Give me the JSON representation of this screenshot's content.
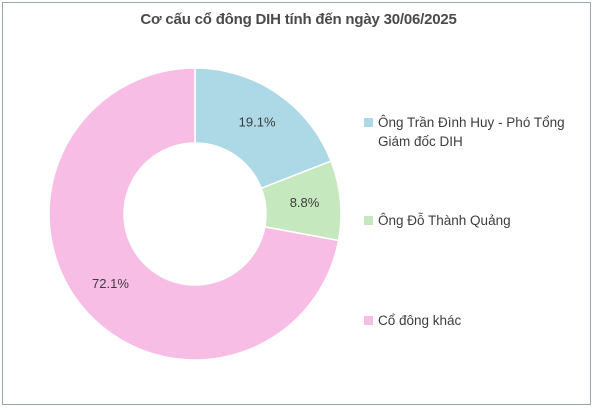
{
  "chart_data": {
    "type": "pie",
    "title": "Cơ cấu cổ đông DIH tính đến ngày 30/06/2025",
    "donut": true,
    "legend_position": "right",
    "slices": [
      {
        "label": "Ông Trần Đình Huy - Phó Tổng Giám đốc DIH",
        "value": 19.1,
        "display": "19.1%",
        "color": "#add8e6"
      },
      {
        "label": "Ông Đỗ Thành Quảng",
        "value": 8.8,
        "display": "8.8%",
        "color": "#c6e8bf"
      },
      {
        "label": "Cổ đông khác",
        "value": 72.1,
        "display": "72.1%",
        "color": "#f7bde5"
      }
    ]
  }
}
